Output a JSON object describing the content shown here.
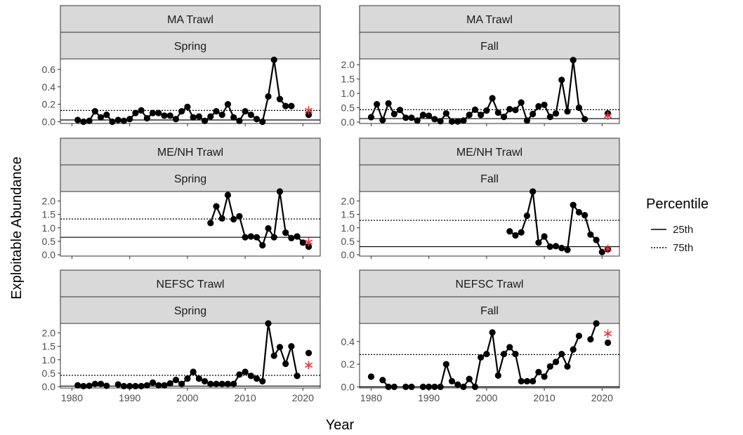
{
  "chart_data": {
    "type": "line",
    "ylabel": "Exploitable Abundance",
    "xlabel": "Year",
    "x_ticks": [
      1980,
      1990,
      2000,
      2010,
      2020
    ],
    "xlim": [
      1978,
      2023
    ],
    "legend": {
      "title": "Percentile",
      "placement": "right",
      "items": [
        {
          "label": "25th",
          "style": "solid"
        },
        {
          "label": "75th",
          "style": "dotted"
        }
      ]
    },
    "colors": {
      "line": "#000000",
      "marker": "#000000",
      "star": "#e8343a",
      "strip": "#d9d9d9",
      "frame": "#333333"
    },
    "panels": [
      {
        "survey": "MA Trawl",
        "season": "Spring",
        "ylim": [
          -0.02,
          0.72
        ],
        "y_ticks": [
          "0.0",
          "0.2",
          "0.4",
          "0.6"
        ],
        "y_tick_values": [
          0,
          0.2,
          0.4,
          0.6
        ],
        "p25": 0.02,
        "p75": 0.13,
        "star": {
          "x": 2021,
          "y": 0.13
        },
        "x": [
          1981,
          1982,
          1983,
          1984,
          1985,
          1986,
          1987,
          1988,
          1989,
          1990,
          1991,
          1992,
          1993,
          1994,
          1995,
          1996,
          1997,
          1998,
          1999,
          2000,
          2001,
          2002,
          2003,
          2004,
          2005,
          2006,
          2007,
          2008,
          2009,
          2010,
          2011,
          2012,
          2013,
          2014,
          2015,
          2016,
          2017,
          2018,
          2019,
          2020,
          2021
        ],
        "y": [
          0.02,
          0.0,
          0.01,
          0.12,
          0.05,
          0.08,
          0.0,
          0.02,
          0.01,
          0.03,
          0.1,
          0.13,
          0.04,
          0.1,
          0.1,
          0.07,
          0.07,
          0.03,
          0.12,
          0.17,
          0.05,
          0.06,
          0.01,
          0.06,
          0.12,
          0.08,
          0.2,
          0.05,
          0.01,
          0.12,
          0.08,
          0.03,
          0.0,
          0.29,
          0.71,
          0.26,
          0.18,
          0.18,
          null,
          null,
          0.08
        ]
      },
      {
        "survey": "MA Trawl",
        "season": "Fall",
        "ylim": [
          -0.05,
          2.2
        ],
        "y_ticks": [
          "0.0",
          "0.5",
          "1.0",
          "1.5",
          "2.0"
        ],
        "y_tick_values": [
          0,
          0.5,
          1.0,
          1.5,
          2.0
        ],
        "p25": 0.12,
        "p75": 0.43,
        "star": {
          "x": 2021,
          "y": 0.22
        },
        "x": [
          1980,
          1981,
          1982,
          1983,
          1984,
          1985,
          1986,
          1987,
          1988,
          1989,
          1990,
          1991,
          1992,
          1993,
          1994,
          1995,
          1996,
          1997,
          1998,
          1999,
          2000,
          2001,
          2002,
          2003,
          2004,
          2005,
          2006,
          2007,
          2008,
          2009,
          2010,
          2011,
          2012,
          2013,
          2014,
          2015,
          2016,
          2017,
          2018,
          2019,
          2020,
          2021
        ],
        "y": [
          0.17,
          0.62,
          0.07,
          0.65,
          0.28,
          0.42,
          0.15,
          0.15,
          0.05,
          0.25,
          0.22,
          0.1,
          0.03,
          0.3,
          0.02,
          0.02,
          0.05,
          0.25,
          0.43,
          0.25,
          0.4,
          0.83,
          0.33,
          0.18,
          0.45,
          0.42,
          0.68,
          0.05,
          0.28,
          0.55,
          0.6,
          0.18,
          0.3,
          1.47,
          0.37,
          2.16,
          0.5,
          0.1,
          null,
          null,
          null,
          0.3
        ]
      },
      {
        "survey": "ME/NH Trawl",
        "season": "Spring",
        "ylim": [
          -0.05,
          2.35
        ],
        "y_ticks": [
          "0.0",
          "0.5",
          "1.0",
          "1.5",
          "2.0"
        ],
        "y_tick_values": [
          0,
          0.5,
          1.0,
          1.5,
          2.0
        ],
        "p25": 0.65,
        "p75": 1.33,
        "star": {
          "x": 2021,
          "y": 0.47
        },
        "x": [
          2004,
          2005,
          2006,
          2007,
          2008,
          2009,
          2010,
          2011,
          2012,
          2013,
          2014,
          2015,
          2016,
          2017,
          2018,
          2019,
          2020,
          2021
        ],
        "y": [
          1.18,
          1.8,
          1.35,
          2.22,
          1.32,
          1.43,
          0.65,
          0.68,
          0.65,
          0.35,
          0.98,
          0.65,
          2.35,
          0.82,
          0.62,
          0.68,
          0.45,
          0.3
        ]
      },
      {
        "survey": "ME/NH Trawl",
        "season": "Fall",
        "ylim": [
          -0.05,
          2.35
        ],
        "y_ticks": [
          "0.0",
          "0.5",
          "1.0",
          "1.5",
          "2.0"
        ],
        "y_tick_values": [
          0,
          0.5,
          1.0,
          1.5,
          2.0
        ],
        "p25": 0.3,
        "p75": 1.28,
        "star": {
          "x": 2021,
          "y": 0.22
        },
        "x": [
          2004,
          2005,
          2006,
          2007,
          2008,
          2009,
          2010,
          2011,
          2012,
          2013,
          2014,
          2015,
          2016,
          2017,
          2018,
          2019,
          2020,
          2021
        ],
        "y": [
          0.87,
          0.72,
          0.83,
          1.45,
          2.35,
          0.45,
          0.68,
          0.3,
          0.32,
          0.25,
          0.18,
          1.85,
          1.58,
          1.47,
          0.75,
          0.55,
          0.1,
          0.2
        ]
      },
      {
        "survey": "NEFSC Trawl",
        "season": "Spring",
        "ylim": [
          -0.05,
          2.35
        ],
        "y_ticks": [
          "0.0",
          "0.5",
          "1.0",
          "1.5",
          "2.0"
        ],
        "y_tick_values": [
          0,
          0.5,
          1.0,
          1.5,
          2.0
        ],
        "p25": 0.02,
        "p75": 0.42,
        "star": {
          "x": 2021,
          "y": 0.8
        },
        "x": [
          1981,
          1982,
          1983,
          1984,
          1985,
          1986,
          1987,
          1988,
          1989,
          1990,
          1991,
          1992,
          1993,
          1994,
          1995,
          1996,
          1997,
          1998,
          1999,
          2000,
          2001,
          2002,
          2003,
          2004,
          2005,
          2006,
          2007,
          2008,
          2009,
          2010,
          2011,
          2012,
          2013,
          2014,
          2015,
          2016,
          2017,
          2018,
          2019,
          2020,
          2021
        ],
        "y": [
          0.05,
          0.02,
          0.03,
          0.1,
          0.1,
          0.03,
          null,
          0.08,
          0.02,
          0.02,
          0.02,
          0.02,
          0.05,
          0.15,
          0.05,
          0.05,
          0.12,
          0.25,
          0.1,
          0.3,
          0.55,
          0.3,
          0.2,
          0.1,
          0.1,
          0.1,
          0.1,
          0.1,
          0.45,
          0.55,
          0.4,
          0.3,
          0.2,
          2.35,
          1.15,
          1.47,
          0.85,
          1.5,
          0.4,
          null,
          1.25
        ]
      },
      {
        "survey": "NEFSC Trawl",
        "season": "Fall",
        "ylim": [
          -0.01,
          0.56
        ],
        "y_ticks": [
          "0.0",
          "0.2",
          "0.4"
        ],
        "y_tick_values": [
          0,
          0.2,
          0.4
        ],
        "p25": 0.0,
        "p75": 0.285,
        "star": {
          "x": 2021,
          "y": 0.47
        },
        "x": [
          1980,
          1981,
          1982,
          1983,
          1984,
          1985,
          1986,
          1987,
          1988,
          1989,
          1990,
          1991,
          1992,
          1993,
          1994,
          1995,
          1996,
          1997,
          1998,
          1999,
          2000,
          2001,
          2002,
          2003,
          2004,
          2005,
          2006,
          2007,
          2008,
          2009,
          2010,
          2011,
          2012,
          2013,
          2014,
          2015,
          2016,
          2017,
          2018,
          2019,
          2020,
          2021
        ],
        "y": [
          0.09,
          null,
          0.06,
          0.0,
          0.0,
          null,
          0.0,
          0.0,
          null,
          0.0,
          0.0,
          0.0,
          0.0,
          0.2,
          0.05,
          0.02,
          0.0,
          0.07,
          0.0,
          0.26,
          0.29,
          0.48,
          0.1,
          0.29,
          0.35,
          0.29,
          0.05,
          0.05,
          0.05,
          0.13,
          0.09,
          0.18,
          0.22,
          0.29,
          0.18,
          0.33,
          0.45,
          null,
          0.42,
          0.56,
          null,
          0.39
        ]
      }
    ]
  }
}
